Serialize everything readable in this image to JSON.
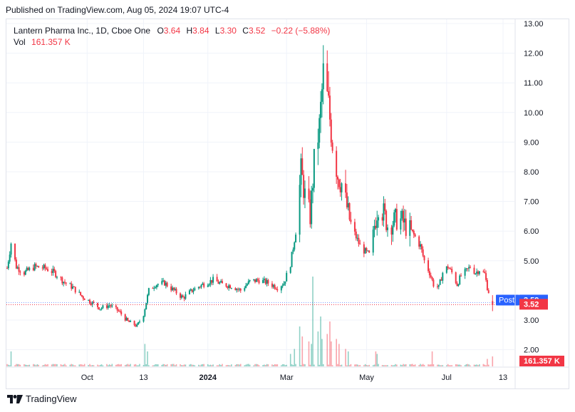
{
  "header": {
    "published": "Published on TradingView.com, Aug 05, 2024 19:07 UTC-4"
  },
  "legend": {
    "symbol": "Lantern Pharma Inc., 1D, Cboe One",
    "o_label": "O",
    "o_value": "3.64",
    "h_label": "H",
    "h_value": "3.84",
    "l_label": "L",
    "l_value": "3.30",
    "c_label": "C",
    "c_value": "3.52",
    "change": "−0.22 (−5.88%)",
    "vol_label": "Vol",
    "vol_value": "161.357 K"
  },
  "footer": {
    "brand": "TradingView"
  },
  "colors": {
    "up": "#089981",
    "down": "#f23645",
    "post": "#2962ff",
    "grid": "#f0f3fa"
  },
  "chart_data": {
    "type": "candlestick",
    "y_axis": {
      "min": 1.6,
      "max": 13.0,
      "ticks": [
        "13.00",
        "12.00",
        "11.00",
        "10.00",
        "9.00",
        "8.00",
        "7.00",
        "6.00",
        "5.00",
        "3.00",
        "2.00"
      ]
    },
    "x_axis": {
      "start": "2023-08-01",
      "end": "2024-08-13",
      "tick_labels": [
        {
          "label": "Oct",
          "date": "2023-10-01"
        },
        {
          "label": "13",
          "date": "2023-11-13"
        },
        {
          "label": "2024",
          "date": "2024-01-01",
          "bold": true
        },
        {
          "label": "Mar",
          "date": "2024-03-01"
        },
        {
          "label": "May",
          "date": "2024-05-01"
        },
        {
          "label": "Jul",
          "date": "2024-07-01"
        },
        {
          "label": "13",
          "date": "2024-08-13"
        }
      ]
    },
    "price_labels": [
      {
        "name": "post",
        "text_label": "Post",
        "value": 3.59,
        "text": "3.59",
        "color": "#2962ff"
      },
      {
        "name": "last",
        "value": 3.52,
        "text": "3.52",
        "color": "#f23645"
      },
      {
        "name": "volume",
        "text": "161.357 K",
        "color": "#f23645"
      }
    ],
    "close_path": [
      [
        "2023-08-01",
        4.75
      ],
      [
        "2023-08-04",
        5.6
      ],
      [
        "2023-08-08",
        4.8
      ],
      [
        "2023-08-14",
        4.6
      ],
      [
        "2023-08-22",
        4.8
      ],
      [
        "2023-08-30",
        4.75
      ],
      [
        "2023-09-06",
        4.6
      ],
      [
        "2023-09-13",
        4.3
      ],
      [
        "2023-09-20",
        4.1
      ],
      [
        "2023-09-27",
        3.8
      ],
      [
        "2023-10-04",
        3.6
      ],
      [
        "2023-10-11",
        3.4
      ],
      [
        "2023-10-18",
        3.5
      ],
      [
        "2023-10-25",
        3.3
      ],
      [
        "2023-11-01",
        2.95
      ],
      [
        "2023-11-08",
        2.8
      ],
      [
        "2023-11-13",
        3.2
      ],
      [
        "2023-11-17",
        4.0
      ],
      [
        "2023-11-22",
        4.2
      ],
      [
        "2023-11-29",
        4.25
      ],
      [
        "2023-12-06",
        4.0
      ],
      [
        "2023-12-13",
        3.75
      ],
      [
        "2023-12-20",
        4.0
      ],
      [
        "2023-12-28",
        4.2
      ],
      [
        "2024-01-05",
        4.35
      ],
      [
        "2024-01-12",
        4.2
      ],
      [
        "2024-01-19",
        4.15
      ],
      [
        "2024-01-26",
        4.0
      ],
      [
        "2024-02-02",
        4.3
      ],
      [
        "2024-02-09",
        4.35
      ],
      [
        "2024-02-16",
        4.25
      ],
      [
        "2024-02-23",
        4.1
      ],
      [
        "2024-02-28",
        4.25
      ],
      [
        "2024-03-04",
        4.9
      ],
      [
        "2024-03-08",
        6.0
      ],
      [
        "2024-03-12",
        8.0
      ],
      [
        "2024-03-15",
        7.2
      ],
      [
        "2024-03-19",
        6.5
      ],
      [
        "2024-03-22",
        8.3
      ],
      [
        "2024-03-26",
        9.5
      ],
      [
        "2024-03-29",
        11.3
      ],
      [
        "2024-04-02",
        10.2
      ],
      [
        "2024-04-05",
        9.0
      ],
      [
        "2024-04-09",
        7.9
      ],
      [
        "2024-04-12",
        7.6
      ],
      [
        "2024-04-16",
        6.8
      ],
      [
        "2024-04-19",
        6.2
      ],
      [
        "2024-04-23",
        5.8
      ],
      [
        "2024-04-26",
        5.5
      ],
      [
        "2024-04-30",
        5.3
      ],
      [
        "2024-05-03",
        5.2
      ],
      [
        "2024-05-07",
        6.2
      ],
      [
        "2024-05-10",
        6.9
      ],
      [
        "2024-05-14",
        6.6
      ],
      [
        "2024-05-17",
        6.2
      ],
      [
        "2024-05-21",
        6.3
      ],
      [
        "2024-05-24",
        6.4
      ],
      [
        "2024-05-28",
        6.35
      ],
      [
        "2024-05-31",
        6.15
      ],
      [
        "2024-06-04",
        6.0
      ],
      [
        "2024-06-07",
        5.8
      ],
      [
        "2024-06-11",
        5.5
      ],
      [
        "2024-06-14",
        5.0
      ],
      [
        "2024-06-18",
        4.6
      ],
      [
        "2024-06-21",
        4.2
      ],
      [
        "2024-06-25",
        4.1
      ],
      [
        "2024-06-28",
        4.6
      ],
      [
        "2024-07-02",
        4.8
      ],
      [
        "2024-07-05",
        4.6
      ],
      [
        "2024-07-09",
        4.2
      ],
      [
        "2024-07-12",
        4.5
      ],
      [
        "2024-07-16",
        4.65
      ],
      [
        "2024-07-19",
        4.8
      ],
      [
        "2024-07-23",
        4.6
      ],
      [
        "2024-07-26",
        4.7
      ],
      [
        "2024-07-30",
        4.55
      ],
      [
        "2024-08-01",
        4.1
      ],
      [
        "2024-08-05",
        3.52
      ]
    ],
    "volume_spikes": [
      [
        "2023-08-04",
        0.3
      ],
      [
        "2023-11-14",
        0.45
      ],
      [
        "2023-11-16",
        0.3
      ],
      [
        "2024-03-04",
        0.25
      ],
      [
        "2024-03-07",
        0.35
      ],
      [
        "2024-03-11",
        0.8
      ],
      [
        "2024-03-13",
        0.6
      ],
      [
        "2024-03-18",
        0.5
      ],
      [
        "2024-03-20",
        0.45
      ],
      [
        "2024-03-21",
        1.8
      ],
      [
        "2024-03-25",
        0.7
      ],
      [
        "2024-03-27",
        1.0
      ],
      [
        "2024-03-28",
        0.55
      ],
      [
        "2024-04-01",
        0.65
      ],
      [
        "2024-04-03",
        0.9
      ],
      [
        "2024-04-04",
        0.5
      ],
      [
        "2024-04-08",
        0.55
      ],
      [
        "2024-04-10",
        0.45
      ],
      [
        "2024-04-15",
        0.35
      ],
      [
        "2024-04-17",
        0.3
      ],
      [
        "2024-05-08",
        0.3
      ],
      [
        "2024-05-09",
        0.25
      ],
      [
        "2024-06-20",
        0.3
      ],
      [
        "2024-08-01",
        0.15
      ],
      [
        "2024-08-05",
        0.2
      ]
    ]
  }
}
